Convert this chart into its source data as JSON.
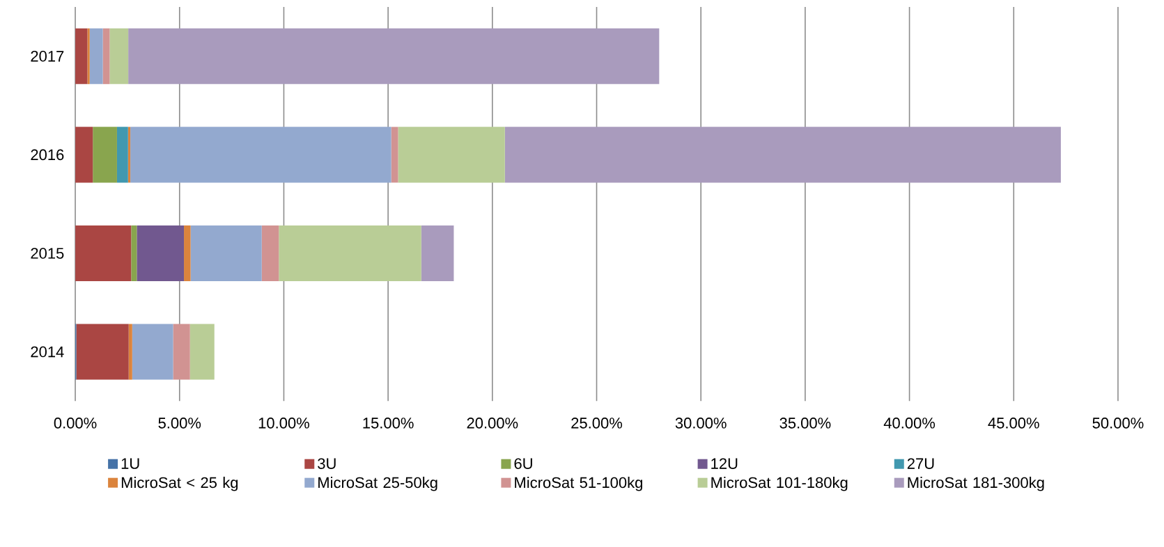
{
  "chart_data": {
    "type": "bar",
    "orientation": "horizontal",
    "stacked": true,
    "categories": [
      "2017",
      "2016",
      "2015",
      "2014"
    ],
    "series": [
      {
        "name": "1U",
        "color": "#4572a7",
        "values": [
          0,
          0,
          0,
          0.05
        ]
      },
      {
        "name": "3U",
        "color": "#aa4643",
        "values": [
          0.58,
          0.84,
          2.68,
          2.51
        ]
      },
      {
        "name": "6U",
        "color": "#89a54e",
        "values": [
          0,
          1.16,
          0.27,
          0
        ]
      },
      {
        "name": "12U",
        "color": "#71588f",
        "values": [
          0,
          0,
          2.26,
          0
        ]
      },
      {
        "name": "27U",
        "color": "#4198af",
        "values": [
          0,
          0.53,
          0,
          0
        ]
      },
      {
        "name": "MicroSat < 25 kg",
        "color": "#db843d",
        "values": [
          0.11,
          0.11,
          0.32,
          0.17
        ]
      },
      {
        "name": "MicroSat 25-50kg",
        "color": "#93a9cf",
        "values": [
          0.63,
          12.51,
          3.41,
          1.96
        ]
      },
      {
        "name": "MicroSat 51-100kg",
        "color": "#d19392",
        "values": [
          0.33,
          0.33,
          0.82,
          0.81
        ]
      },
      {
        "name": "MicroSat 101-180kg",
        "color": "#b9cd96",
        "values": [
          0.89,
          5.12,
          6.83,
          1.17
        ]
      },
      {
        "name": "MicroSat 181-300kg",
        "color": "#a99bbd",
        "values": [
          25.46,
          26.66,
          1.56,
          0
        ]
      }
    ],
    "xlim": [
      0,
      50
    ],
    "xticks": [
      {
        "value": 0,
        "label": "0.00%"
      },
      {
        "value": 5,
        "label": "5.00%"
      },
      {
        "value": 10,
        "label": "10.00%"
      },
      {
        "value": 15,
        "label": "15.00%"
      },
      {
        "value": 20,
        "label": "20.00%"
      },
      {
        "value": 25,
        "label": "25.00%"
      },
      {
        "value": 30,
        "label": "30.00%"
      },
      {
        "value": 35,
        "label": "35.00%"
      },
      {
        "value": 40,
        "label": "40.00%"
      },
      {
        "value": 45,
        "label": "45.00%"
      },
      {
        "value": 50,
        "label": "50.00%"
      }
    ],
    "grid": "x",
    "legend": "bottom"
  }
}
